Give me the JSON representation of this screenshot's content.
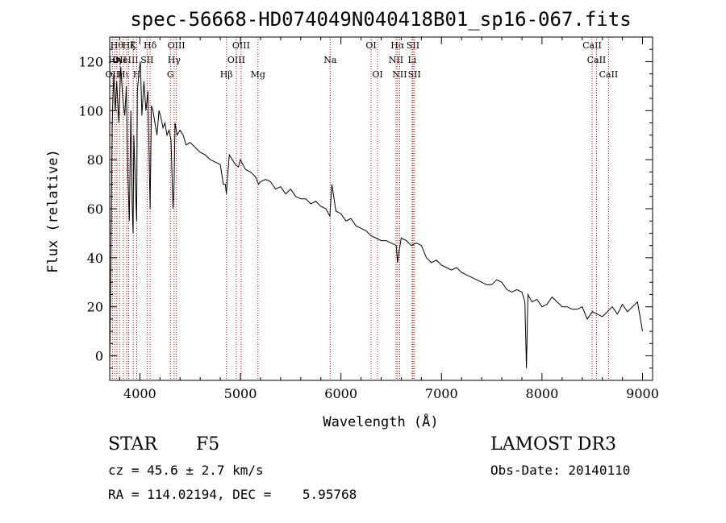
{
  "page": {
    "title": "spec-56668-HD074049N040418B01_sp16-067.fits",
    "class_label": "STAR",
    "subclass_label": "F5",
    "survey_label": "LAMOST DR3",
    "redshift_line": "cz = 45.6 ± 2.7 km/s",
    "obs_date_line": "Obs-Date: 20140110",
    "coords_line": "RA = 114.02194, DEC =    5.95768"
  },
  "chart_data": {
    "type": "line",
    "title": "spec-56668-HD074049N040418B01_sp16-067.fits",
    "xlabel": "Wavelength (Å)",
    "ylabel": "Flux (relative)",
    "xlim": [
      3700,
      9100
    ],
    "ylim": [
      -10,
      130
    ],
    "grid": false,
    "x_ticks": [
      4000,
      5000,
      6000,
      7000,
      8000,
      9000
    ],
    "y_ticks": [
      0,
      20,
      40,
      60,
      80,
      100,
      120
    ],
    "series": [
      {
        "color": "#000000",
        "x": [
          3700,
          3712,
          3725,
          3740,
          3755,
          3770,
          3790,
          3810,
          3830,
          3850,
          3865,
          3880,
          3895,
          3910,
          3925,
          3933,
          3940,
          3955,
          3968,
          3975,
          3990,
          4005,
          4020,
          4040,
          4060,
          4080,
          4102,
          4115,
          4130,
          4150,
          4170,
          4190,
          4210,
          4230,
          4250,
          4270,
          4290,
          4310,
          4330,
          4340,
          4350,
          4370,
          4400,
          4430,
          4460,
          4500,
          4550,
          4600,
          4650,
          4700,
          4750,
          4800,
          4830,
          4850,
          4861,
          4870,
          4890,
          4920,
          4950,
          4980,
          5000,
          5050,
          5100,
          5150,
          5180,
          5200,
          5250,
          5300,
          5350,
          5400,
          5450,
          5500,
          5550,
          5600,
          5650,
          5700,
          5750,
          5800,
          5850,
          5890,
          5910,
          5950,
          6000,
          6050,
          6100,
          6150,
          6200,
          6250,
          6300,
          6350,
          6400,
          6450,
          6500,
          6550,
          6563,
          6580,
          6600,
          6650,
          6700,
          6750,
          6800,
          6850,
          6900,
          6950,
          7000,
          7050,
          7100,
          7150,
          7200,
          7250,
          7300,
          7350,
          7400,
          7450,
          7500,
          7550,
          7600,
          7650,
          7700,
          7750,
          7800,
          7830,
          7845,
          7860,
          7900,
          7950,
          8000,
          8050,
          8100,
          8150,
          8200,
          8250,
          8300,
          8350,
          8400,
          8450,
          8500,
          8550,
          8600,
          8650,
          8700,
          8750,
          8800,
          8850,
          8900,
          8950,
          9000
        ],
        "y": [
          -5,
          40,
          95,
          115,
          100,
          112,
          95,
          118,
          105,
          98,
          110,
          75,
          55,
          100,
          60,
          50,
          90,
          70,
          55,
          108,
          115,
          120,
          98,
          112,
          100,
          108,
          60,
          102,
          100,
          95,
          90,
          100,
          97,
          93,
          95,
          90,
          92,
          88,
          60,
          70,
          95,
          90,
          92,
          90,
          86,
          87,
          85,
          83,
          82,
          80,
          79,
          78,
          70,
          70,
          66,
          72,
          82,
          80,
          78,
          77,
          80,
          76,
          75,
          73,
          70,
          71,
          72,
          71,
          68,
          69,
          66,
          68,
          65,
          64,
          64,
          62,
          63,
          61,
          60,
          57,
          70,
          59,
          58,
          55,
          56,
          53,
          52,
          51,
          49,
          48,
          47,
          47,
          46,
          45,
          38,
          43,
          48,
          47,
          45,
          46,
          45,
          40,
          38,
          39,
          37,
          36,
          35,
          36,
          34,
          33,
          32,
          31,
          30,
          29,
          29,
          31,
          30,
          27,
          26,
          27,
          26,
          22,
          -5,
          25,
          22,
          23,
          20,
          21,
          24,
          22,
          20,
          20,
          19,
          19,
          20,
          15,
          18,
          17,
          16,
          18,
          20,
          17,
          21,
          18,
          20,
          22,
          10
        ]
      }
    ],
    "annotations": [
      {
        "wavelength": 3727,
        "label": "OII",
        "row": 2
      },
      {
        "wavelength": 3750,
        "label": "Hη",
        "row": 1
      },
      {
        "wavelength": 3771,
        "label": "Hθ",
        "row": 0
      },
      {
        "wavelength": 3798,
        "label": "OII",
        "row": 1
      },
      {
        "wavelength": 3835,
        "label": "Hι",
        "row": 2
      },
      {
        "wavelength": 3869,
        "label": "NeIII",
        "row": 1
      },
      {
        "wavelength": 3889,
        "label": "Hζ",
        "row": 0
      },
      {
        "wavelength": 3934,
        "label": "K",
        "row": 0
      },
      {
        "wavelength": 3969,
        "label": "H",
        "row": 2
      },
      {
        "wavelength": 4072,
        "label": "SII",
        "row": 1
      },
      {
        "wavelength": 4102,
        "label": "Hδ",
        "row": 0
      },
      {
        "wavelength": 4304,
        "label": "G",
        "row": 2
      },
      {
        "wavelength": 4341,
        "label": "Hγ",
        "row": 1
      },
      {
        "wavelength": 4363,
        "label": "OIII",
        "row": 0
      },
      {
        "wavelength": 4861,
        "label": "Hβ",
        "row": 2
      },
      {
        "wavelength": 4959,
        "label": "OIII",
        "row": 1
      },
      {
        "wavelength": 5007,
        "label": "OIII",
        "row": 0
      },
      {
        "wavelength": 5175,
        "label": "Mg",
        "row": 2
      },
      {
        "wavelength": 5893,
        "label": "Na",
        "row": 1
      },
      {
        "wavelength": 6300,
        "label": "OI",
        "row": 0
      },
      {
        "wavelength": 6364,
        "label": "OI",
        "row": 2
      },
      {
        "wavelength": 6548,
        "label": "NII",
        "row": 1
      },
      {
        "wavelength": 6563,
        "label": "Hα",
        "row": 0
      },
      {
        "wavelength": 6584,
        "label": "NII",
        "row": 2
      },
      {
        "wavelength": 6708,
        "label": "Li",
        "row": 1
      },
      {
        "wavelength": 6717,
        "label": "SII",
        "row": 0
      },
      {
        "wavelength": 6731,
        "label": "SII",
        "row": 2
      },
      {
        "wavelength": 8498,
        "label": "CaII",
        "row": 0
      },
      {
        "wavelength": 8542,
        "label": "CaII",
        "row": 1
      },
      {
        "wavelength": 8662,
        "label": "CaII",
        "row": 2
      }
    ]
  }
}
